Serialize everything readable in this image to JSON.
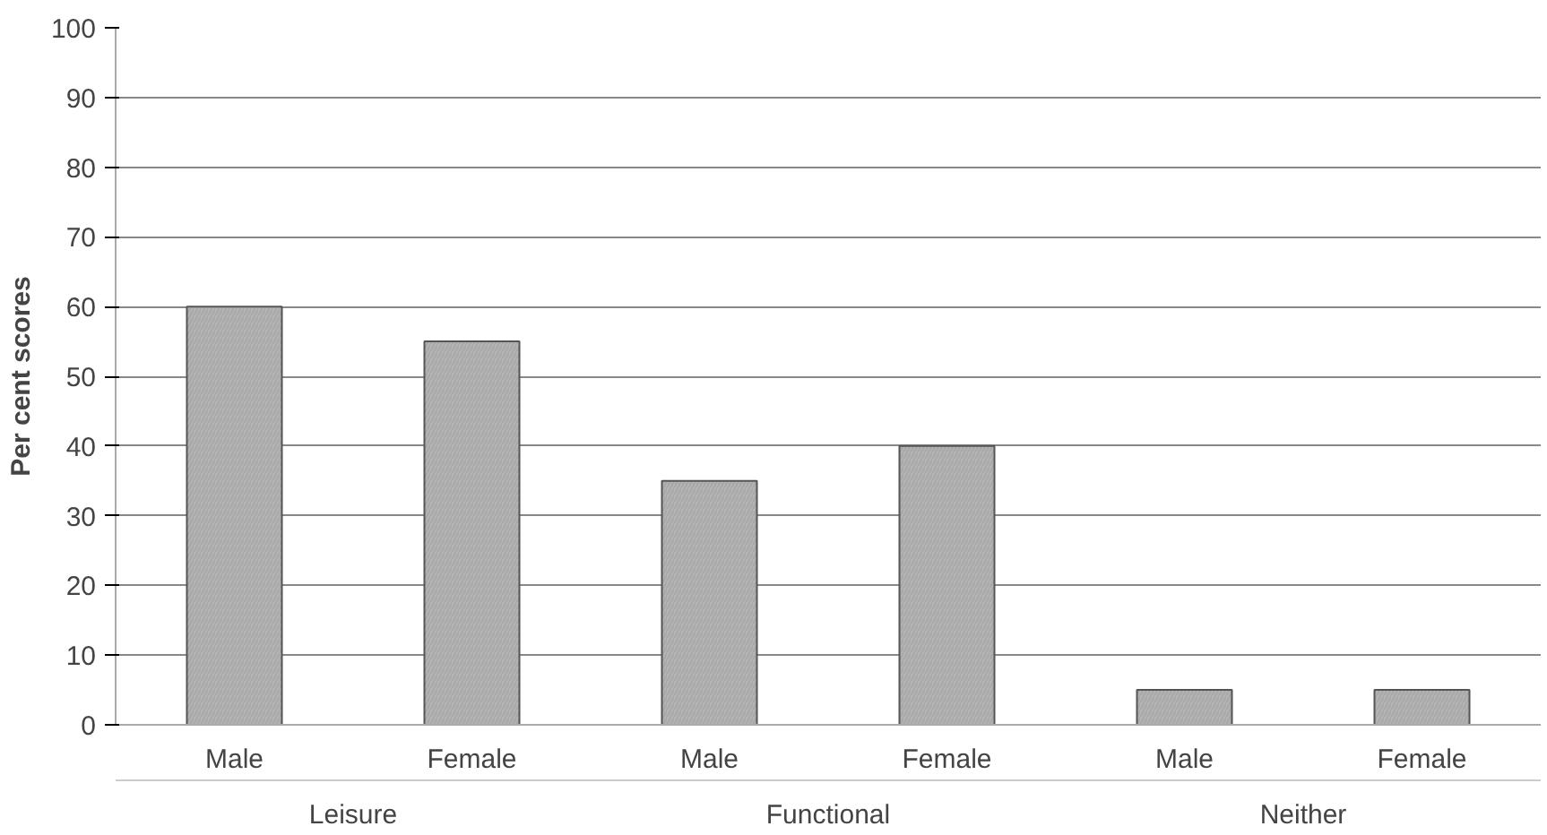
{
  "chart_data": {
    "type": "bar",
    "ylabel": "Per cent scores",
    "categories": [
      "Male",
      "Female",
      "Male",
      "Female",
      "Male",
      "Female"
    ],
    "values": [
      60,
      55,
      35,
      40,
      5,
      5
    ],
    "color": "#b4b4b4",
    "annotations": [
      "Leisure",
      "Functional",
      "Neither"
    ],
    "ylim": [
      0,
      100
    ],
    "yticks": [
      0,
      10,
      20,
      30,
      40,
      50,
      60,
      70,
      80,
      90,
      100
    ],
    "grid": "y"
  }
}
